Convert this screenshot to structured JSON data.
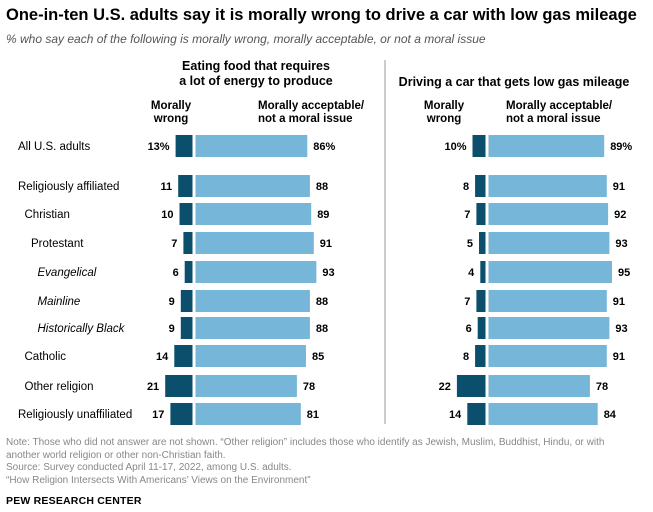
{
  "title": "One-in-ten U.S. adults say it is morally wrong to drive a car with low gas mileage",
  "subtitle": "% who say each of the following is morally wrong, morally acceptable, or not a moral issue",
  "note_lines": [
    "Note: Those who did not answer are not shown. “Other religion” includes those who identify as Jewish, Muslim, Buddhist, Hindu, or with",
    "another world religion or other non-Christian faith.",
    "Source: Survey conducted April 11-17, 2022, among U.S. adults.",
    "“How Religion Intersects With Americans’ Views on the Environment”"
  ],
  "brand": "PEW RESEARCH CENTER",
  "colors": {
    "wrong": "#0b4f6c",
    "acceptable": "#76b6d9",
    "divider": "#999999"
  },
  "chart_data": {
    "type": "bar",
    "orientation": "horizontal-diverging",
    "categories": [
      "All U.S. adults",
      "Religiously affiliated",
      "Christian",
      "Protestant",
      "Evangelical",
      "Mainline",
      "Historically Black",
      "Catholic",
      "Other religion",
      "Religiously unaffiliated"
    ],
    "category_indent": [
      0,
      0,
      1,
      2,
      3,
      3,
      3,
      1,
      1,
      0
    ],
    "category_italic": [
      false,
      false,
      false,
      false,
      true,
      true,
      true,
      false,
      false,
      false
    ],
    "panels": [
      {
        "title_lines": [
          "Eating food that requires",
          "a lot of energy to produce"
        ],
        "series": [
          {
            "name": "Morally wrong",
            "header_lines": [
              "Morally",
              "wrong"
            ],
            "values": [
              13,
              11,
              10,
              7,
              6,
              9,
              9,
              14,
              21,
              17
            ],
            "first_suffix": "%"
          },
          {
            "name": "Morally acceptable/not a moral issue",
            "header_lines": [
              "Morally acceptable/",
              "not a moral issue"
            ],
            "values": [
              86,
              88,
              89,
              91,
              93,
              88,
              88,
              85,
              78,
              81
            ],
            "first_suffix": "%"
          }
        ]
      },
      {
        "title_lines": [
          "Driving a car that gets low gas mileage"
        ],
        "series": [
          {
            "name": "Morally wrong",
            "header_lines": [
              "Morally",
              "wrong"
            ],
            "values": [
              10,
              8,
              7,
              5,
              4,
              7,
              6,
              8,
              22,
              14
            ],
            "first_suffix": "%"
          },
          {
            "name": "Morally acceptable/not a moral issue",
            "header_lines": [
              "Morally acceptable/",
              "not a moral issue"
            ],
            "values": [
              89,
              91,
              92,
              93,
              95,
              91,
              93,
              91,
              78,
              84
            ],
            "first_suffix": "%"
          }
        ]
      }
    ]
  }
}
